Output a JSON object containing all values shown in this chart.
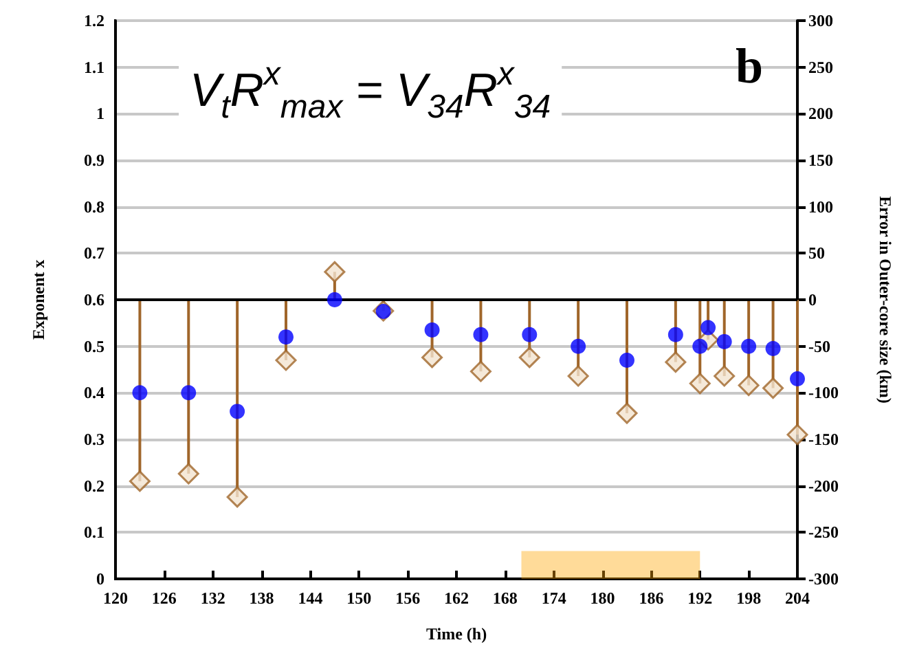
{
  "chart_data": {
    "type": "scatter",
    "xlabel": "Time (h)",
    "ylabel": "Exponent x",
    "y2label": "Error in Outer-core size (km)",
    "annotations": [
      "V$_{t}$R$^{x}$$_{max}$ = V$_{34}$R$^{x}$$_{34}$",
      "b"
    ],
    "xlim": [
      120,
      204
    ],
    "xticks": [
      120,
      126,
      132,
      138,
      144,
      150,
      156,
      162,
      168,
      174,
      180,
      186,
      192,
      198,
      204
    ],
    "ylim": [
      0,
      1.2
    ],
    "yticks": [
      0,
      0.1,
      0.2,
      0.3,
      0.4,
      0.5,
      0.6,
      0.7,
      0.8,
      0.9,
      1,
      1.1,
      1.2
    ],
    "y2lim": [
      -300,
      300
    ],
    "y2ticks": [
      -300,
      -250,
      -200,
      -150,
      -100,
      -50,
      0,
      50,
      100,
      150,
      200,
      250,
      300
    ],
    "grid": "y",
    "ref_lines": [
      {
        "axis": "y2",
        "value": 0,
        "color": "#000000"
      }
    ],
    "bands": [
      {
        "axis": "x",
        "from": 170,
        "to": 192,
        "color": "#ffa500"
      }
    ],
    "series": [
      {
        "type": "lollipop",
        "axis": "y2",
        "color": "#a0662a",
        "marker": "diamond",
        "x": [
          123,
          129,
          135,
          141,
          147,
          153,
          159,
          165,
          171,
          177,
          183,
          189,
          192,
          193,
          195,
          198,
          201,
          204
        ],
        "values": [
          -195,
          -187,
          -212,
          -65,
          30,
          -12,
          -62,
          -77,
          -62,
          -82,
          -122,
          -67,
          -90,
          -43,
          -82,
          -92,
          -95,
          -145
        ]
      },
      {
        "color": "#0000ff",
        "marker": "circle",
        "x": [
          123,
          129,
          135,
          141,
          147,
          153,
          159,
          165,
          171,
          177,
          183,
          189,
          192,
          193,
          195,
          198,
          201,
          204
        ],
        "values": [
          0.4,
          0.4,
          0.36,
          0.52,
          0.6,
          0.575,
          0.535,
          0.525,
          0.525,
          0.5,
          0.47,
          0.525,
          0.5,
          0.54,
          0.51,
          0.5,
          0.495,
          0.43
        ]
      }
    ]
  }
}
